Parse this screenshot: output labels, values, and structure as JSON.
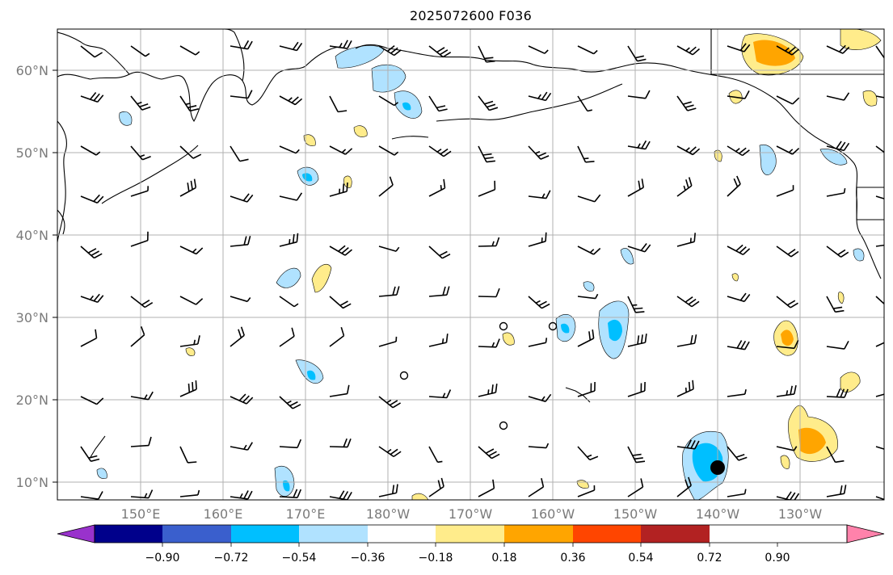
{
  "title": "2025072600 F036",
  "map": {
    "lat_labels": [
      "10°N",
      "20°N",
      "30°N",
      "40°N",
      "50°N",
      "60°N"
    ],
    "lon_labels": [
      "150°E",
      "160°E",
      "170°E",
      "180°W",
      "170°W",
      "160°W",
      "150°W",
      "140°W",
      "130°W"
    ],
    "grid": true,
    "symbols": "wind-barbs"
  },
  "colorbar": {
    "colors": [
      "#9932cc",
      "#00008b",
      "#3a5fcd",
      "#00bfff",
      "#b0e2ff",
      "#ffffff",
      "#ffec8b",
      "#ffa500",
      "#ff4500",
      "#b22222",
      "#ff82ab"
    ],
    "tick_labels": [
      "−0.90",
      "−0.72",
      "−0.54",
      "−0.36",
      "−0.18",
      "0.18",
      "0.36",
      "0.54",
      "0.72",
      "0.90"
    ],
    "extend": "both"
  },
  "colors": {
    "grid": "#b0b0b0",
    "coast": "#000000",
    "neg_light": "#b0e2ff",
    "neg_mid": "#00bfff",
    "pos_light": "#ffec8b",
    "pos_mid": "#ffa500"
  }
}
